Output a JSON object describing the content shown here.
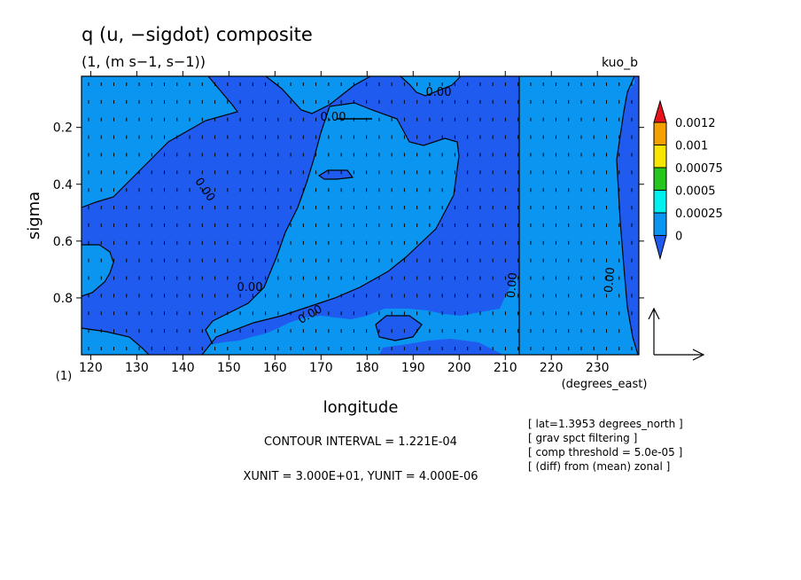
{
  "title": "q (u, −sigdot) composite",
  "subtitle": "(1, (m s−1, s−1))",
  "run_label": "kuo_b",
  "chart_data": {
    "type": "heatmap",
    "subtype": "filled-contour with vector arrows",
    "xlabel": "longitude",
    "xunits": "(degrees_east)",
    "ylabel": "sigma",
    "yunits": "(1)",
    "xlim": [
      118,
      239
    ],
    "ylim": [
      1.0,
      0.02
    ],
    "x_ticks": [
      120,
      130,
      140,
      150,
      160,
      170,
      180,
      190,
      200,
      210,
      220,
      230
    ],
    "y_ticks": [
      0.2,
      0.4,
      0.6,
      0.8
    ],
    "colorbar": {
      "levels": [
        "0.0012",
        "0.001",
        "0.00075",
        "0.0005",
        "0.00025",
        "0"
      ],
      "colors": [
        "#e8121a",
        "#f5a000",
        "#f7e600",
        "#27c61f",
        "#00f0f0",
        "#0a96f0",
        "#1f5bef",
        "#1f5bef"
      ]
    },
    "fill_colors": {
      "below_zero": "#1f5bef",
      "zero_to_0.00025": "#0a96f0"
    },
    "contour_labels": [
      "0.00",
      "0.00",
      "0.00",
      "0.00",
      "0.00",
      "0.00",
      "0.00"
    ],
    "contour_interval": "1.221E-04",
    "xunit": "3.000E+01",
    "yunit": "4.000E-06"
  },
  "footer": {
    "contour_interval": "CONTOUR INTERVAL = 1.221E-04",
    "units": "XUNIT = 3.000E+01, YUNIT = 4.000E-06"
  },
  "notes": [
    "[ lat=1.3953 degrees_north ]",
    "[ grav spct filtering ]",
    "[ comp threshold = 5.0e-05 ]",
    "[ (diff) from (mean) zonal ]"
  ]
}
